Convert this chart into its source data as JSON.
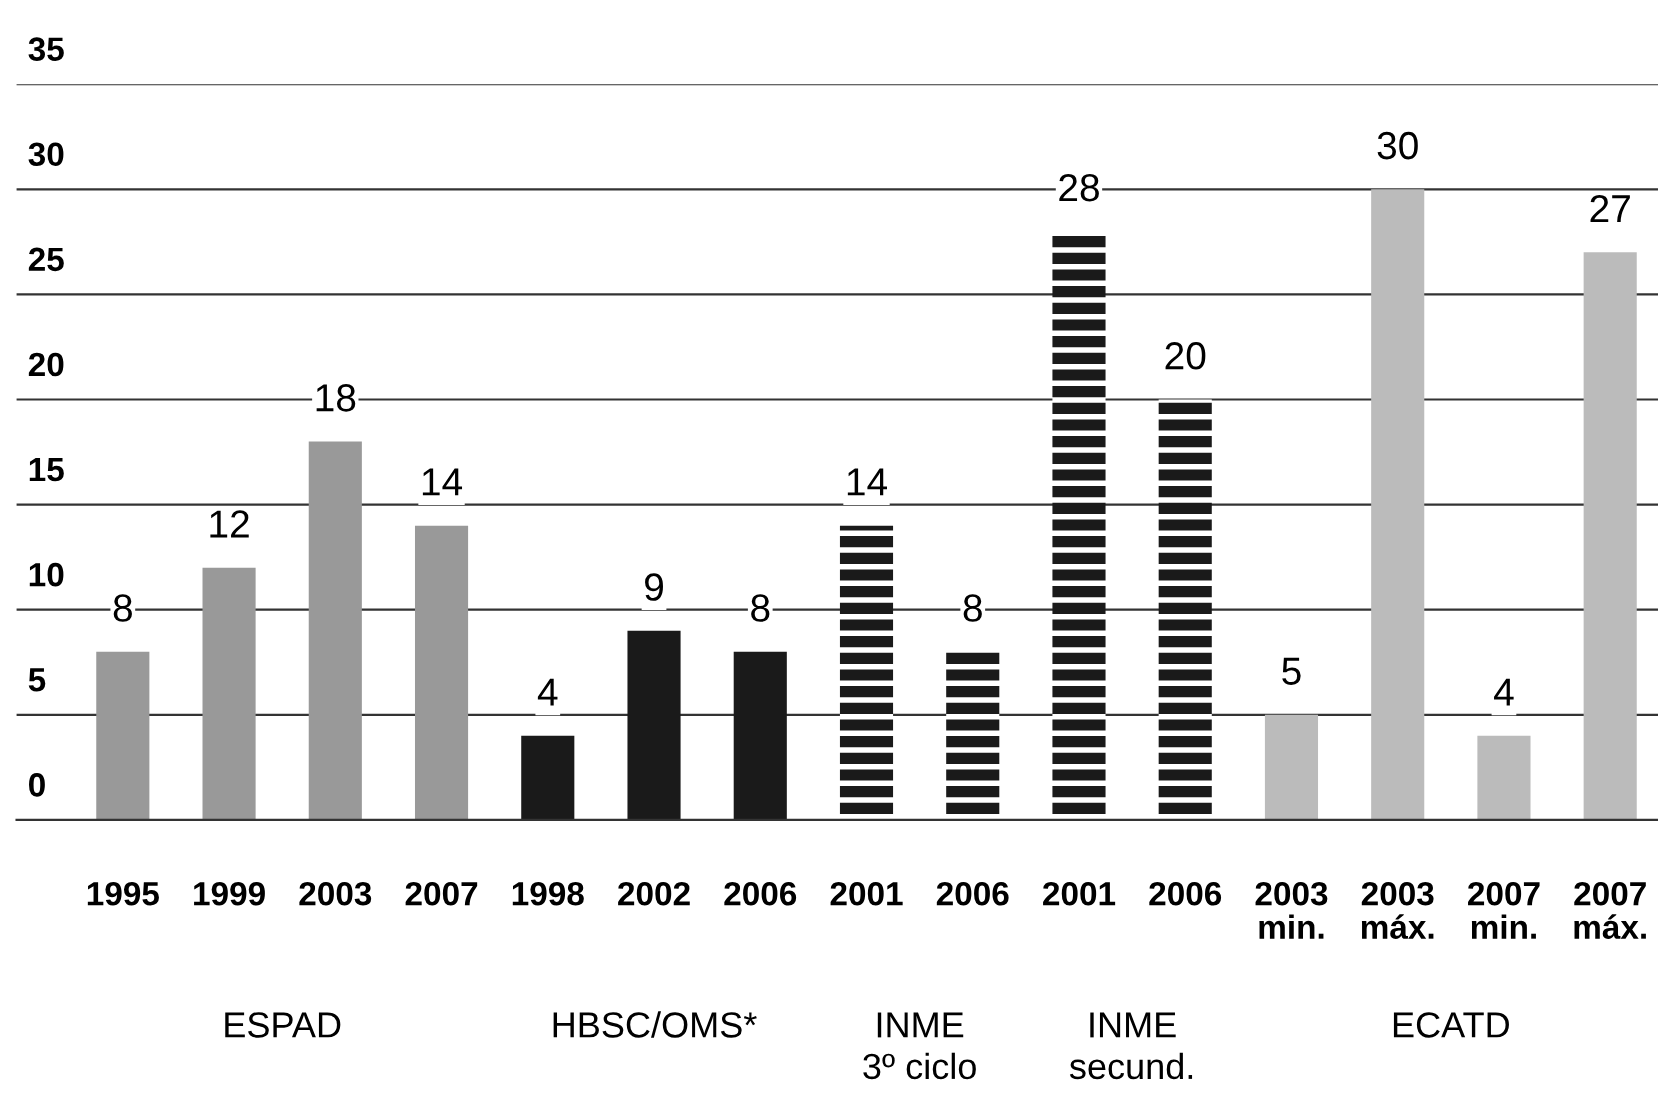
{
  "chart_data": {
    "type": "bar",
    "categories": [
      "1995",
      "1999",
      "2003",
      "2007",
      "1998",
      "2002",
      "2006",
      "2001",
      "2006",
      "2001",
      "2006",
      "2003\nmin.",
      "2003\nmáx.",
      "2007\nmin.",
      "2007\nmáx."
    ],
    "series": [
      {
        "color": "#999999",
        "values": [
          8,
          12,
          18,
          14,
          null,
          null,
          null,
          null,
          null,
          null,
          null,
          null,
          null,
          null,
          null
        ]
      },
      {
        "color": "#1a1a1a",
        "values": [
          null,
          null,
          null,
          null,
          4,
          9,
          8,
          null,
          null,
          null,
          null,
          null,
          null,
          null,
          null
        ]
      },
      {
        "color": "#1a1a1a",
        "line_style": "dashed",
        "values": [
          null,
          null,
          null,
          null,
          null,
          null,
          null,
          14,
          8,
          null,
          null,
          null,
          null,
          null,
          null
        ]
      },
      {
        "color": "#1a1a1a",
        "line_style": "dashed",
        "values": [
          null,
          null,
          null,
          null,
          null,
          null,
          null,
          null,
          null,
          28,
          20,
          null,
          null,
          null,
          null
        ]
      },
      {
        "color": "#bbbbbb",
        "values": [
          null,
          null,
          null,
          null,
          null,
          null,
          null,
          null,
          null,
          null,
          null,
          5,
          30,
          4,
          27
        ]
      }
    ],
    "annotations": [
      "ESPAD",
      "HBSC/OMS*",
      "INME\n3º ciclo",
      "INME\nsecund.",
      "ECATD"
    ],
    "ylim": [
      0,
      35
    ],
    "yticks": [
      0,
      5,
      10,
      15,
      20,
      25,
      30,
      35
    ],
    "grid": "y",
    "data_labels": true,
    "legend": false
  }
}
